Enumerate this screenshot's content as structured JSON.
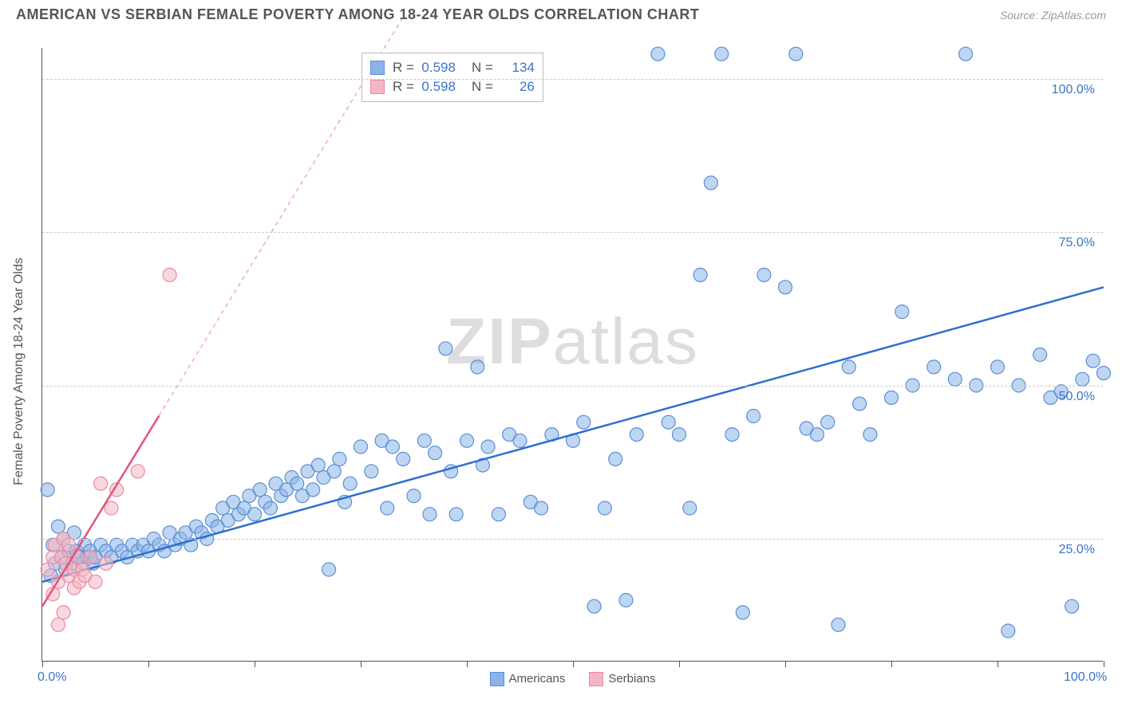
{
  "title": "AMERICAN VS SERBIAN FEMALE POVERTY AMONG 18-24 YEAR OLDS CORRELATION CHART",
  "source_label": "Source: ZipAtlas.com",
  "watermark_bold": "ZIP",
  "watermark_rest": "atlas",
  "yaxis_label": "Female Poverty Among 18-24 Year Olds",
  "chart": {
    "type": "scatter",
    "background_color": "#ffffff",
    "grid_color": "#cccccc",
    "axis_color": "#555555",
    "tick_label_color": "#3b74c9",
    "xlim": [
      0,
      100
    ],
    "ylim": [
      5,
      105
    ],
    "x_tick_positions": [
      0,
      10,
      20,
      30,
      40,
      50,
      60,
      70,
      80,
      90,
      100
    ],
    "x_tick_labels": {
      "0": "0.0%",
      "100": "100.0%"
    },
    "y_tick_positions": [
      25,
      50,
      75,
      100
    ],
    "y_tick_labels": [
      "25.0%",
      "50.0%",
      "75.0%",
      "100.0%"
    ],
    "marker_radius": 8.5,
    "marker_opacity": 0.55,
    "series": [
      {
        "name": "Americans",
        "legend_label": "Americans",
        "fill_color": "#8ab4e8",
        "stroke_color": "#5a8fd6",
        "line_color": "#2e6fd1",
        "line_width": 2.5,
        "line_dash": "none",
        "trend_x1": 0,
        "trend_y1": 18,
        "trend_x2": 100,
        "trend_y2": 66,
        "R": "0.598",
        "N": "134",
        "points": [
          [
            0.5,
            33
          ],
          [
            0.8,
            19
          ],
          [
            1,
            24
          ],
          [
            1.2,
            21
          ],
          [
            1.5,
            27
          ],
          [
            1.8,
            22
          ],
          [
            2,
            25
          ],
          [
            2.2,
            20
          ],
          [
            2.5,
            23
          ],
          [
            2.8,
            21
          ],
          [
            3,
            26
          ],
          [
            3.2,
            23
          ],
          [
            3.5,
            22
          ],
          [
            3.8,
            21
          ],
          [
            4,
            24
          ],
          [
            4.2,
            22
          ],
          [
            4.5,
            23
          ],
          [
            4.8,
            21
          ],
          [
            5,
            22
          ],
          [
            5.5,
            24
          ],
          [
            6,
            23
          ],
          [
            6.5,
            22
          ],
          [
            7,
            24
          ],
          [
            7.5,
            23
          ],
          [
            8,
            22
          ],
          [
            8.5,
            24
          ],
          [
            9,
            23
          ],
          [
            9.5,
            24
          ],
          [
            10,
            23
          ],
          [
            10.5,
            25
          ],
          [
            11,
            24
          ],
          [
            11.5,
            23
          ],
          [
            12,
            26
          ],
          [
            12.5,
            24
          ],
          [
            13,
            25
          ],
          [
            13.5,
            26
          ],
          [
            14,
            24
          ],
          [
            14.5,
            27
          ],
          [
            15,
            26
          ],
          [
            15.5,
            25
          ],
          [
            16,
            28
          ],
          [
            16.5,
            27
          ],
          [
            17,
            30
          ],
          [
            17.5,
            28
          ],
          [
            18,
            31
          ],
          [
            18.5,
            29
          ],
          [
            19,
            30
          ],
          [
            19.5,
            32
          ],
          [
            20,
            29
          ],
          [
            20.5,
            33
          ],
          [
            21,
            31
          ],
          [
            21.5,
            30
          ],
          [
            22,
            34
          ],
          [
            22.5,
            32
          ],
          [
            23,
            33
          ],
          [
            23.5,
            35
          ],
          [
            24,
            34
          ],
          [
            24.5,
            32
          ],
          [
            25,
            36
          ],
          [
            25.5,
            33
          ],
          [
            26,
            37
          ],
          [
            26.5,
            35
          ],
          [
            27,
            20
          ],
          [
            27.5,
            36
          ],
          [
            28,
            38
          ],
          [
            28.5,
            31
          ],
          [
            29,
            34
          ],
          [
            30,
            40
          ],
          [
            31,
            36
          ],
          [
            32,
            41
          ],
          [
            32.5,
            30
          ],
          [
            33,
            40
          ],
          [
            34,
            38
          ],
          [
            35,
            32
          ],
          [
            36,
            41
          ],
          [
            36.5,
            29
          ],
          [
            37,
            39
          ],
          [
            38,
            56
          ],
          [
            38.5,
            36
          ],
          [
            39,
            29
          ],
          [
            40,
            41
          ],
          [
            41,
            53
          ],
          [
            41.5,
            37
          ],
          [
            42,
            40
          ],
          [
            43,
            29
          ],
          [
            44,
            42
          ],
          [
            45,
            41
          ],
          [
            46,
            31
          ],
          [
            47,
            30
          ],
          [
            48,
            42
          ],
          [
            50,
            41
          ],
          [
            51,
            44
          ],
          [
            52,
            14
          ],
          [
            53,
            30
          ],
          [
            54,
            38
          ],
          [
            55,
            15
          ],
          [
            56,
            42
          ],
          [
            58,
            104
          ],
          [
            59,
            44
          ],
          [
            60,
            42
          ],
          [
            61,
            30
          ],
          [
            62,
            68
          ],
          [
            63,
            83
          ],
          [
            64,
            104
          ],
          [
            65,
            42
          ],
          [
            66,
            13
          ],
          [
            67,
            45
          ],
          [
            68,
            68
          ],
          [
            70,
            66
          ],
          [
            71,
            104
          ],
          [
            72,
            43
          ],
          [
            73,
            42
          ],
          [
            74,
            44
          ],
          [
            75,
            11
          ],
          [
            76,
            53
          ],
          [
            77,
            47
          ],
          [
            78,
            42
          ],
          [
            80,
            48
          ],
          [
            81,
            62
          ],
          [
            82,
            50
          ],
          [
            84,
            53
          ],
          [
            86,
            51
          ],
          [
            87,
            104
          ],
          [
            88,
            50
          ],
          [
            90,
            53
          ],
          [
            91,
            10
          ],
          [
            92,
            50
          ],
          [
            94,
            55
          ],
          [
            95,
            48
          ],
          [
            96,
            49
          ],
          [
            97,
            14
          ],
          [
            98,
            51
          ],
          [
            99,
            54
          ],
          [
            100,
            52
          ]
        ]
      },
      {
        "name": "Serbians",
        "legend_label": "Serbians",
        "fill_color": "#f4b6c2",
        "stroke_color": "#e88ca0",
        "line_color": "#e25578",
        "line_width": 2.5,
        "line_dash": "5,5",
        "trend_x1": 0,
        "trend_y1": 14,
        "trend_x2": 34,
        "trend_y2": 110,
        "trend_solid_until_x": 11,
        "R": "0.598",
        "N": "26",
        "points": [
          [
            0.5,
            20
          ],
          [
            1,
            16
          ],
          [
            1,
            22
          ],
          [
            1.2,
            24
          ],
          [
            1.5,
            18
          ],
          [
            1.5,
            11
          ],
          [
            1.8,
            22
          ],
          [
            2,
            25
          ],
          [
            2,
            13
          ],
          [
            2.2,
            21
          ],
          [
            2.5,
            19
          ],
          [
            2.5,
            24
          ],
          [
            3,
            20
          ],
          [
            3,
            17
          ],
          [
            3.3,
            22
          ],
          [
            3.5,
            18
          ],
          [
            3.8,
            20
          ],
          [
            4,
            19
          ],
          [
            4.5,
            22
          ],
          [
            5,
            18
          ],
          [
            5.5,
            34
          ],
          [
            6,
            21
          ],
          [
            6.5,
            30
          ],
          [
            7,
            33
          ],
          [
            9,
            36
          ],
          [
            12,
            68
          ]
        ]
      }
    ]
  },
  "stat_box": {
    "rows": [
      {
        "swatch_fill": "#8ab4e8",
        "swatch_stroke": "#5a8fd6",
        "R": "0.598",
        "N": "134"
      },
      {
        "swatch_fill": "#f4b6c2",
        "swatch_stroke": "#e88ca0",
        "R": "0.598",
        "N": "26"
      }
    ]
  },
  "footer_legend": [
    {
      "swatch_fill": "#8ab4e8",
      "swatch_stroke": "#5a8fd6",
      "label": "Americans"
    },
    {
      "swatch_fill": "#f4b6c2",
      "swatch_stroke": "#e88ca0",
      "label": "Serbians"
    }
  ]
}
